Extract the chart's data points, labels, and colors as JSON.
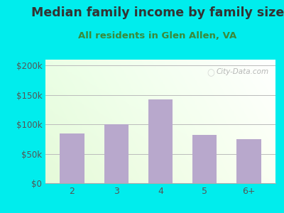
{
  "title": "Median family income by family size",
  "subtitle": "All residents in Glen Allen, VA",
  "categories": [
    "2",
    "3",
    "4",
    "5",
    "6+"
  ],
  "values": [
    85000,
    100000,
    143000,
    82000,
    75000
  ],
  "bar_color": "#b8a8cc",
  "title_color": "#333333",
  "subtitle_color": "#3a8a3a",
  "background_outer": "#00eded",
  "ylim": [
    0,
    210000
  ],
  "yticks": [
    0,
    50000,
    100000,
    150000,
    200000
  ],
  "ytick_labels": [
    "$0",
    "$50k",
    "$100k",
    "$150k",
    "$200k"
  ],
  "watermark": "City-Data.com",
  "title_fontsize": 12.5,
  "subtitle_fontsize": 9.5
}
